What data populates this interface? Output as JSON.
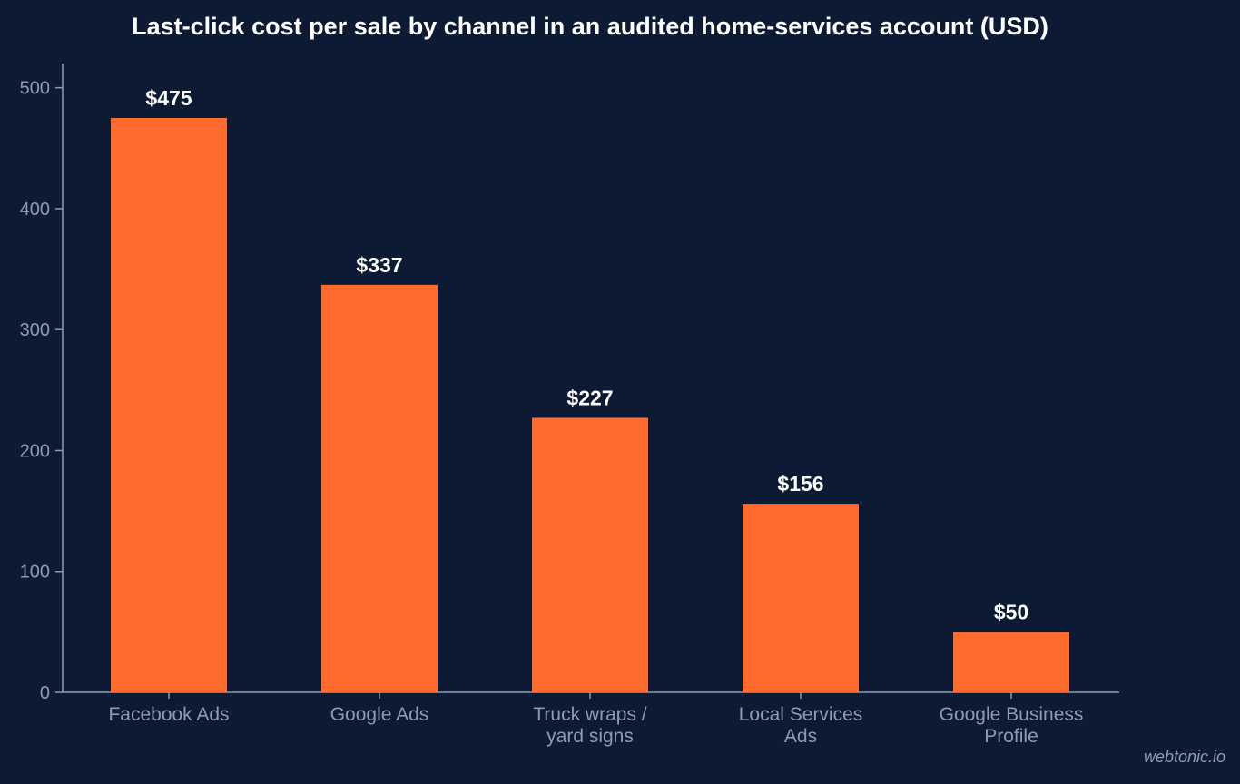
{
  "colors": {
    "background": "#0c1b33",
    "bar": "#ff6b2e",
    "axis": "#8d9bb3",
    "text": "#ffffff"
  },
  "watermark": "webtonic.io",
  "chart_data": {
    "type": "bar",
    "title": "Last-click cost per sale by channel in an audited home-services account (USD)",
    "xlabel": "",
    "ylabel": "",
    "categories": [
      [
        "Facebook Ads"
      ],
      [
        "Google Ads"
      ],
      [
        "Truck wraps /",
        "yard signs"
      ],
      [
        "Local Services",
        "Ads"
      ],
      [
        "Google Business",
        "Profile"
      ]
    ],
    "values": [
      475,
      337,
      227,
      156,
      50
    ],
    "value_labels": [
      "$475",
      "$337",
      "$227",
      "$156",
      "$50"
    ],
    "ylim": [
      0,
      520
    ],
    "yticks": [
      0,
      100,
      200,
      300,
      400,
      500
    ],
    "grid": false,
    "legend": "none"
  }
}
